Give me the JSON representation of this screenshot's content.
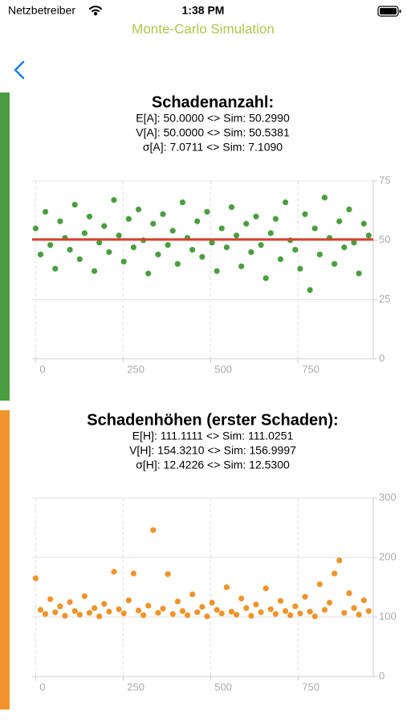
{
  "status_bar": {
    "carrier": "Netzbetreiber",
    "time": "1:38 PM"
  },
  "nav": {
    "title": "Monte-Carlo Simulation"
  },
  "chart_data": [
    {
      "type": "scatter",
      "title": "Schadenanzahl:",
      "subtitle": [
        "E[A]: 50.0000 <> Sim: 50.2990",
        "V[A]: 50.0000 <> Sim: 50.5381",
        "σ[A]: 7.0711 <> Sim: 7.1090"
      ],
      "color": "#4a9e3f",
      "x": [
        0,
        14,
        28,
        42,
        56,
        70,
        84,
        98,
        112,
        126,
        140,
        154,
        168,
        182,
        196,
        210,
        224,
        238,
        252,
        266,
        280,
        294,
        308,
        322,
        336,
        350,
        364,
        378,
        392,
        406,
        420,
        434,
        448,
        462,
        476,
        490,
        504,
        518,
        532,
        546,
        560,
        574,
        588,
        602,
        616,
        630,
        644,
        658,
        672,
        686,
        700,
        714,
        728,
        742,
        756,
        770,
        784,
        798,
        812,
        826,
        840,
        854,
        868,
        882,
        896,
        910,
        924,
        938,
        952
      ],
      "values": [
        55,
        44,
        62,
        48,
        38,
        58,
        51,
        46,
        65,
        42,
        53,
        60,
        37,
        49,
        56,
        45,
        67,
        52,
        41,
        59,
        47,
        63,
        50,
        36,
        57,
        44,
        61,
        48,
        54,
        40,
        66,
        51,
        46,
        58,
        43,
        62,
        49,
        37,
        55,
        47,
        64,
        52,
        39,
        57,
        45,
        60,
        48,
        34,
        53,
        59,
        42,
        66,
        50,
        46,
        38,
        61,
        29,
        55,
        44,
        68,
        51,
        40,
        58,
        47,
        63,
        49,
        36,
        57,
        52
      ],
      "mean_line": {
        "value": 50.3,
        "color": "#d9412b"
      },
      "xlim": [
        -10,
        965
      ],
      "ylim": [
        0,
        75
      ],
      "xticks": [
        0,
        250,
        500,
        750
      ],
      "yticks": [
        0,
        25,
        50,
        75
      ],
      "grid": true
    },
    {
      "type": "scatter",
      "title": "Schadenhöhen (erster Schaden):",
      "subtitle": [
        "E[H]: 111.1111 <> Sim: 111.0251",
        "V[H]: 154.3210 <> Sim: 156.9997",
        "σ[H]: 12.4226 <> Sim: 12.5300"
      ],
      "color": "#f0932b",
      "x": [
        0,
        14,
        28,
        42,
        56,
        70,
        84,
        98,
        112,
        126,
        140,
        154,
        168,
        182,
        196,
        210,
        224,
        238,
        252,
        266,
        280,
        294,
        308,
        322,
        336,
        350,
        364,
        378,
        392,
        406,
        420,
        434,
        448,
        462,
        476,
        490,
        504,
        518,
        532,
        546,
        560,
        574,
        588,
        602,
        616,
        630,
        644,
        658,
        672,
        686,
        700,
        714,
        728,
        742,
        756,
        770,
        784,
        798,
        812,
        826,
        840,
        854,
        868,
        882,
        896,
        910,
        924,
        938,
        952
      ],
      "values": [
        165,
        112,
        105,
        130,
        108,
        118,
        102,
        125,
        110,
        104,
        135,
        107,
        115,
        101,
        122,
        109,
        176,
        113,
        106,
        128,
        173,
        111,
        103,
        119,
        246,
        107,
        114,
        172,
        105,
        126,
        110,
        103,
        138,
        108,
        117,
        101,
        124,
        112,
        106,
        150,
        109,
        104,
        131,
        115,
        102,
        121,
        108,
        148,
        113,
        105,
        127,
        110,
        103,
        118,
        106,
        134,
        109,
        101,
        155,
        112,
        124,
        173,
        195,
        107,
        140,
        115,
        104,
        128,
        110
      ],
      "xlim": [
        -10,
        965
      ],
      "ylim": [
        0,
        300
      ],
      "xticks": [
        0,
        250,
        500,
        750
      ],
      "yticks": [
        0,
        100,
        200,
        300
      ],
      "grid": true
    }
  ]
}
